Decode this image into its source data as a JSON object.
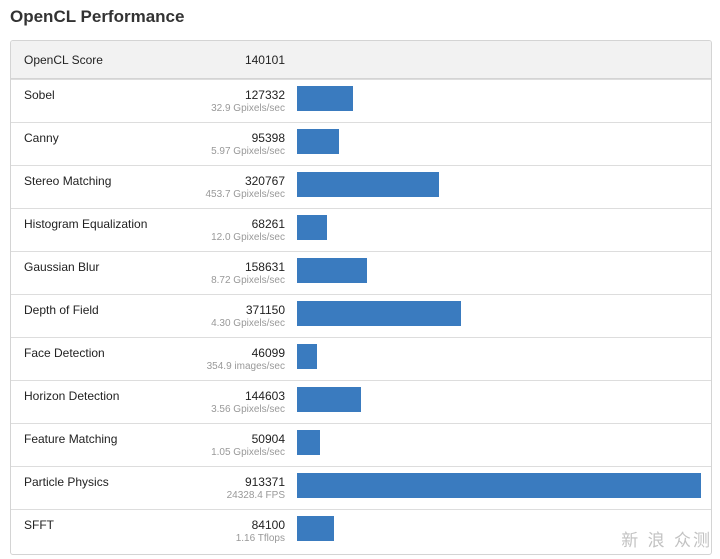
{
  "title": "OpenCL Performance",
  "header": {
    "label": "OpenCL Score",
    "score": "140101"
  },
  "accent_color": "#3a7bbf",
  "watermark": "新 浪 众测",
  "chart_data": {
    "type": "bar",
    "orientation": "horizontal",
    "bar_axis_max": 913371,
    "categories": [
      "Sobel",
      "Canny",
      "Stereo Matching",
      "Histogram Equalization",
      "Gaussian Blur",
      "Depth of Field",
      "Face Detection",
      "Horizon Detection",
      "Feature Matching",
      "Particle Physics",
      "SFFT"
    ],
    "values": [
      127332,
      95398,
      320767,
      68261,
      158631,
      371150,
      46099,
      144603,
      50904,
      913371,
      84100
    ],
    "rows": [
      {
        "name": "Sobel",
        "score": "127332",
        "rate": "32.9 Gpixels/sec"
      },
      {
        "name": "Canny",
        "score": "95398",
        "rate": "5.97 Gpixels/sec"
      },
      {
        "name": "Stereo Matching",
        "score": "320767",
        "rate": "453.7 Gpixels/sec"
      },
      {
        "name": "Histogram Equalization",
        "score": "68261",
        "rate": "12.0 Gpixels/sec"
      },
      {
        "name": "Gaussian Blur",
        "score": "158631",
        "rate": "8.72 Gpixels/sec"
      },
      {
        "name": "Depth of Field",
        "score": "371150",
        "rate": "4.30 Gpixels/sec"
      },
      {
        "name": "Face Detection",
        "score": "46099",
        "rate": "354.9 images/sec"
      },
      {
        "name": "Horizon Detection",
        "score": "144603",
        "rate": "3.56 Gpixels/sec"
      },
      {
        "name": "Feature Matching",
        "score": "50904",
        "rate": "1.05 Gpixels/sec"
      },
      {
        "name": "Particle Physics",
        "score": "913371",
        "rate": "24328.4 FPS"
      },
      {
        "name": "SFFT",
        "score": "84100",
        "rate": "1.16 Tflops"
      }
    ]
  }
}
